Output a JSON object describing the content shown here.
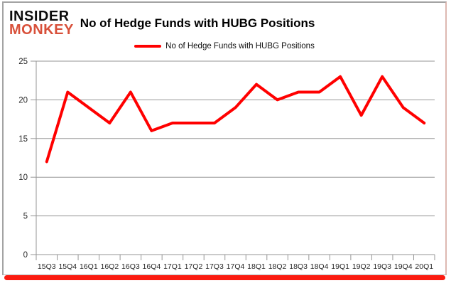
{
  "logo": {
    "line1": "INSIDER",
    "line2": "MONKEY"
  },
  "header": {
    "title": "No of Hedge Funds with HUBG Positions"
  },
  "legend": {
    "label": "No of Hedge Funds with HUBG Positions"
  },
  "chart_data": {
    "type": "line",
    "title": "No of Hedge Funds with HUBG Positions",
    "categories": [
      "15Q3",
      "15Q4",
      "16Q1",
      "16Q2",
      "16Q3",
      "16Q4",
      "17Q1",
      "17Q2",
      "17Q3",
      "17Q4",
      "18Q1",
      "18Q2",
      "18Q3",
      "18Q4",
      "19Q1",
      "19Q2",
      "19Q3",
      "19Q4",
      "20Q1"
    ],
    "series": [
      {
        "name": "No of Hedge Funds with HUBG Positions",
        "values": [
          12,
          21,
          19,
          17,
          21,
          16,
          17,
          17,
          17,
          19,
          22,
          20,
          21,
          21,
          23,
          18,
          23,
          19,
          17
        ]
      }
    ],
    "xlabel": "",
    "ylabel": "",
    "ylim": [
      0,
      25
    ],
    "yticks": [
      0,
      5,
      10,
      15,
      20,
      25
    ],
    "grid": true,
    "legend_position": "top",
    "line_color": "#ff0000",
    "grid_color": "#969696",
    "axis_color": "#969696",
    "tick_label_color": "#262626"
  }
}
